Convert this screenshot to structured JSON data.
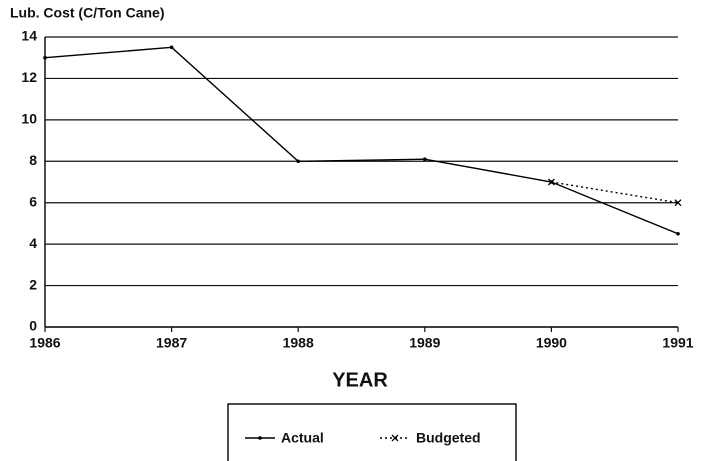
{
  "chart_data": {
    "type": "line",
    "y_label": "Lub. Cost (C/Ton Cane)",
    "x_label": "YEAR",
    "x": [
      1986,
      1987,
      1988,
      1989,
      1990,
      1991
    ],
    "series": [
      {
        "name": "Actual",
        "color": "#000000",
        "dash": "solid",
        "marker": "dot",
        "values": [
          13,
          13.5,
          8,
          8.1,
          7,
          4.5
        ]
      },
      {
        "name": "Budgeted",
        "color": "#000000",
        "dash": "dotted",
        "marker": "x",
        "values": [
          null,
          null,
          null,
          null,
          7,
          6
        ]
      }
    ],
    "xlim": [
      1986,
      1991
    ],
    "xticks": [
      1986,
      1987,
      1988,
      1989,
      1990,
      1991
    ],
    "ylim": [
      0,
      14
    ],
    "yticks": [
      0,
      2,
      4,
      6,
      8,
      10,
      12,
      14
    ],
    "grid": true
  }
}
